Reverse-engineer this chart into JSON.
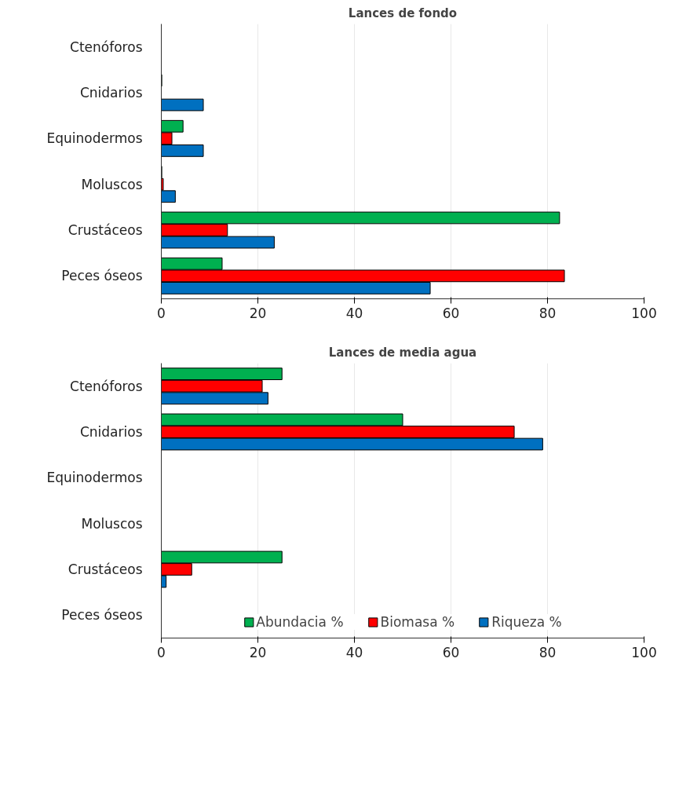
{
  "chart_data": [
    {
      "type": "bar",
      "orientation": "horizontal",
      "title": "Lances de fondo",
      "categories": [
        "Ctenóforos",
        "Cnidarios",
        "Equinodermos",
        "Moluscos",
        "Crustáceos",
        "Peces óseos"
      ],
      "series": [
        {
          "color": "#00b050",
          "values": [
            0,
            0.1,
            4.5,
            0.1,
            82.5,
            12.6
          ]
        },
        {
          "color": "#ff0000",
          "values": [
            0,
            0,
            2.2,
            0.4,
            13.7,
            83.5
          ]
        },
        {
          "color": "#0070c0",
          "values": [
            0,
            8.7,
            8.7,
            2.9,
            23.4,
            55.7
          ]
        }
      ],
      "xlim": [
        0,
        100
      ],
      "xticks": [
        0,
        20,
        40,
        60,
        80,
        100
      ],
      "grid": "x"
    },
    {
      "type": "bar",
      "orientation": "horizontal",
      "title": "Lances de media agua",
      "categories": [
        "Ctenóforos",
        "Cnidarios",
        "Equinodermos",
        "Moluscos",
        "Crustáceos",
        "Peces óseos"
      ],
      "series": [
        {
          "name": "Abundacia %",
          "color": "#00b050",
          "values": [
            25,
            50,
            0,
            0,
            25,
            0
          ]
        },
        {
          "name": "Biomasa %",
          "color": "#ff0000",
          "values": [
            20.9,
            73.1,
            0,
            0,
            6.3,
            0
          ]
        },
        {
          "name": "Riqueza %",
          "color": "#0070c0",
          "values": [
            22.1,
            79,
            0,
            0,
            1.0,
            0
          ]
        }
      ],
      "xlim": [
        0,
        100
      ],
      "xticks": [
        0,
        20,
        40,
        60,
        80,
        100
      ],
      "grid": "x",
      "legend": "bottom"
    }
  ]
}
